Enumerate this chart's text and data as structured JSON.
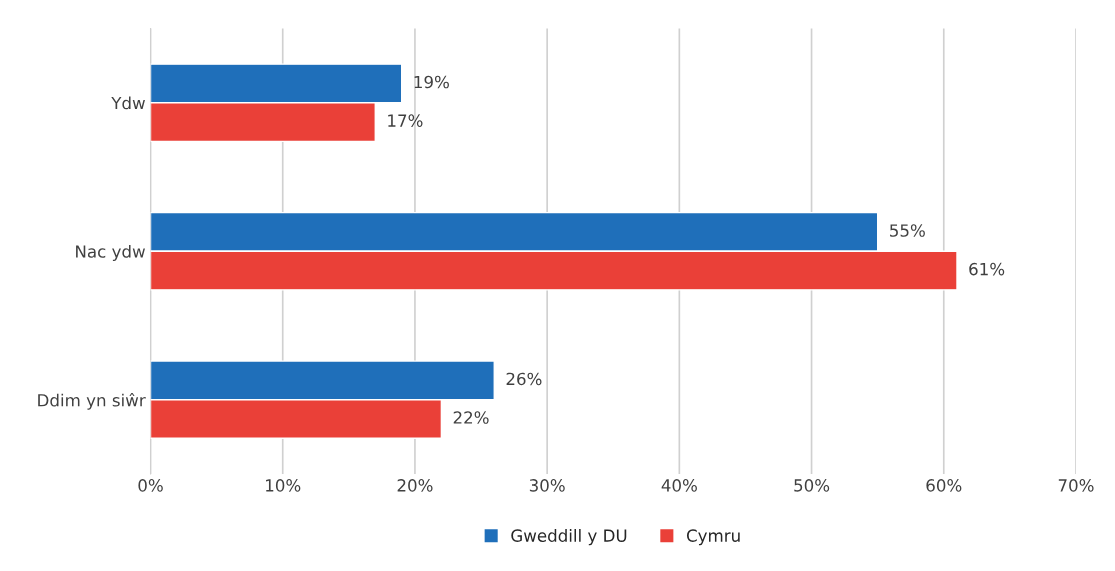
{
  "chart_data": {
    "type": "bar",
    "orientation": "horizontal",
    "categories": [
      "Ydw",
      "Nac ydw",
      "Ddim yn siŵr"
    ],
    "series": [
      {
        "name": "Gweddill y DU",
        "color": "#1f6fba",
        "values": [
          19,
          55,
          26
        ],
        "value_labels": [
          "19%",
          "55%",
          "26%"
        ]
      },
      {
        "name": "Cymru",
        "color": "#ea4038",
        "values": [
          17,
          61,
          22
        ],
        "value_labels": [
          "17%",
          "61%",
          "22%"
        ]
      }
    ],
    "xlim": [
      0,
      70
    ],
    "xticks": [
      {
        "value": 0,
        "label": "0%"
      },
      {
        "value": 10,
        "label": "10%"
      },
      {
        "value": 20,
        "label": "20%"
      },
      {
        "value": 30,
        "label": "30%"
      },
      {
        "value": 40,
        "label": "40%"
      },
      {
        "value": 50,
        "label": "50%"
      },
      {
        "value": 60,
        "label": "60%"
      },
      {
        "value": 70,
        "label": "70%"
      }
    ],
    "grid": "x",
    "legend": "bottom"
  }
}
